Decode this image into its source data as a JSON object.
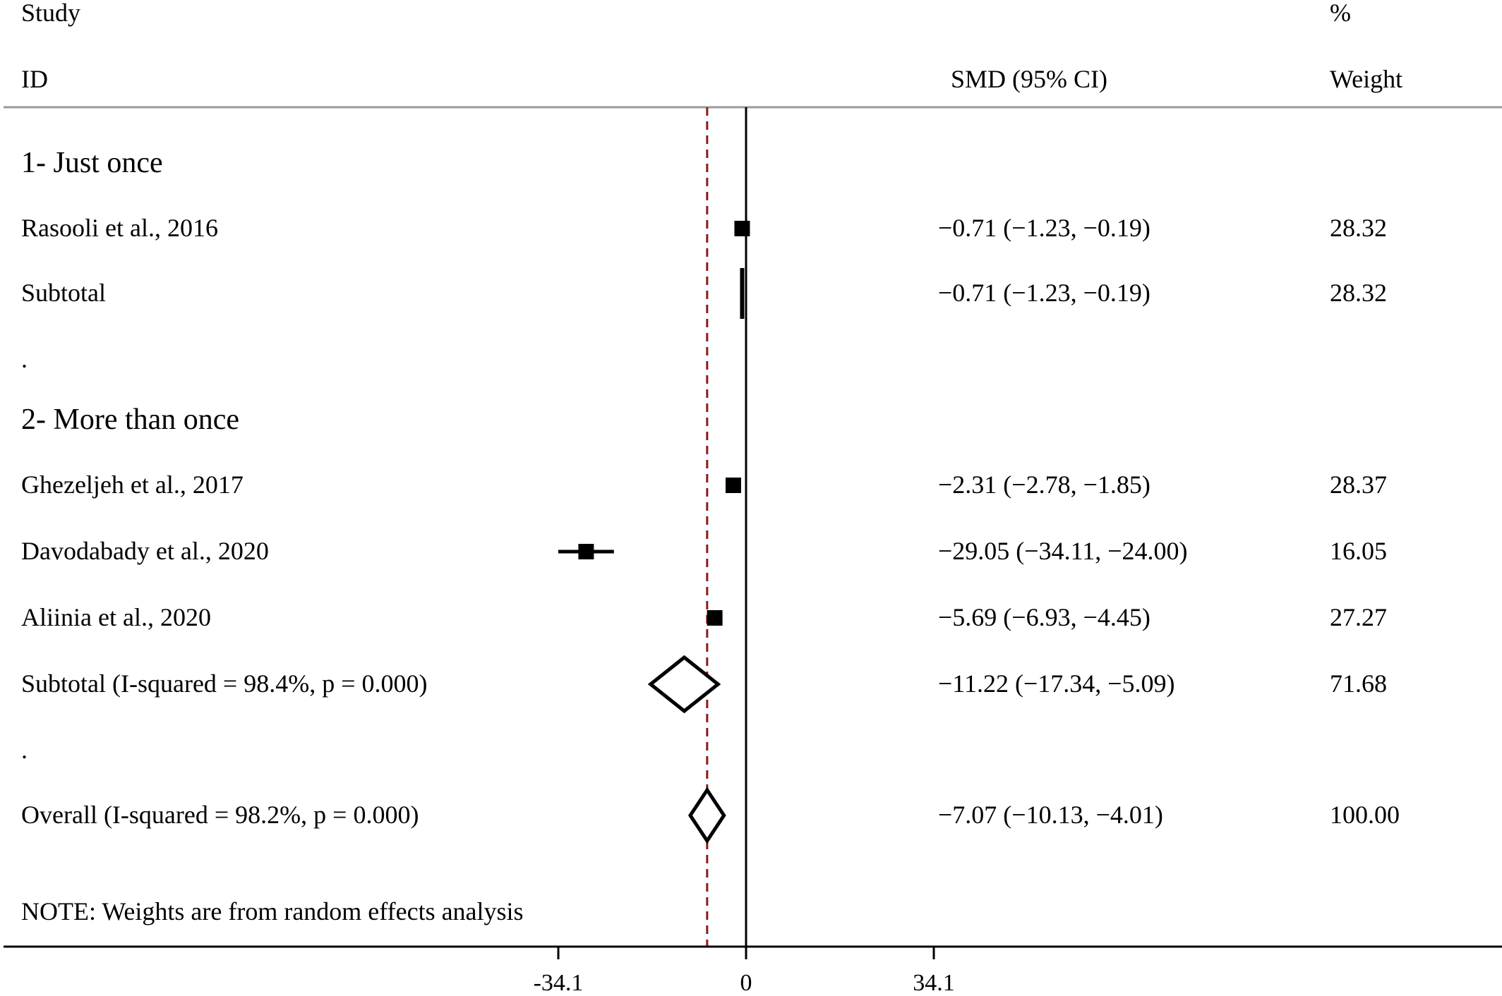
{
  "header": {
    "study_label": "Study",
    "id_label": "ID",
    "effect_label": "SMD (95% CI)",
    "percent_label": "%",
    "weight_label": "Weight"
  },
  "note": "NOTE: Weights are from random effects analysis",
  "chart_data": {
    "type": "forest",
    "measure": "SMD",
    "xlim": [
      -34.1,
      34.1
    ],
    "ticks": [
      -34.1,
      0,
      34.1
    ],
    "tick_labels": [
      "-34.1",
      "0",
      "34.1"
    ],
    "null_line": 0,
    "overall_line": -7.07,
    "rows": [
      {
        "kind": "group",
        "label": "1- Just once"
      },
      {
        "kind": "study",
        "label": "Rasooli et al., 2016",
        "est": -0.71,
        "lo": -1.23,
        "hi": -0.19,
        "ci_text": "−0.71 (−1.23, −0.19)",
        "weight": "28.32"
      },
      {
        "kind": "subtotal",
        "label": "Subtotal",
        "est": -0.71,
        "lo": -1.23,
        "hi": -0.19,
        "ci_text": "−0.71 (−1.23, −0.19)",
        "weight": "28.32"
      },
      {
        "kind": "spacer",
        "label": "."
      },
      {
        "kind": "group",
        "label": "2- More than once"
      },
      {
        "kind": "study",
        "label": "Ghezeljeh et al., 2017",
        "est": -2.31,
        "lo": -2.78,
        "hi": -1.85,
        "ci_text": "−2.31 (−2.78, −1.85)",
        "weight": "28.37"
      },
      {
        "kind": "study",
        "label": "Davodabady et al., 2020",
        "est": -29.05,
        "lo": -34.11,
        "hi": -24.0,
        "ci_text": "−29.05 (−34.11, −24.00)",
        "weight": "16.05"
      },
      {
        "kind": "study",
        "label": "Aliinia et al., 2020",
        "est": -5.69,
        "lo": -6.93,
        "hi": -4.45,
        "ci_text": "−5.69 (−6.93, −4.45)",
        "weight": "27.27"
      },
      {
        "kind": "subtotal",
        "label": "Subtotal  (I-squared = 98.4%, p = 0.000)",
        "est": -11.22,
        "lo": -17.34,
        "hi": -5.09,
        "ci_text": "−11.22 (−17.34, −5.09)",
        "weight": "71.68"
      },
      {
        "kind": "spacer",
        "label": "."
      },
      {
        "kind": "overall",
        "label": "Overall  (I-squared = 98.2%, p = 0.000)",
        "est": -7.07,
        "lo": -10.13,
        "hi": -4.01,
        "ci_text": "−7.07 (−10.13, −4.01)",
        "weight": "100.00"
      }
    ]
  }
}
